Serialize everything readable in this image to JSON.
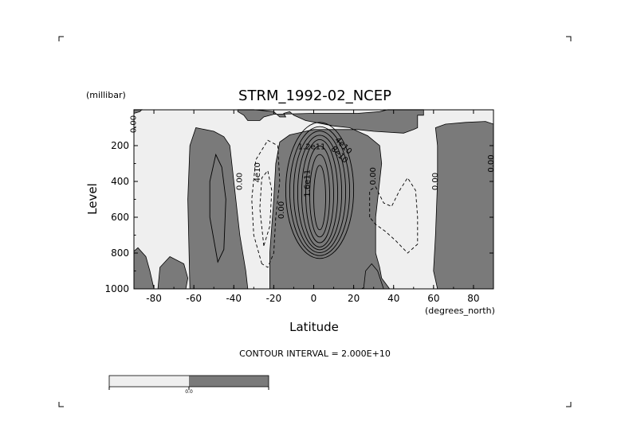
{
  "chart_data": {
    "type": "contour",
    "title": "STRM_1992-02_NCEP",
    "xlabel": "Latitude",
    "x_unit": "(degrees_north)",
    "ylabel": "Level",
    "y_unit": "(millibar)",
    "xlim": [
      -90,
      90
    ],
    "ylim": [
      1000,
      0
    ],
    "x_ticks": [
      -80,
      -60,
      -40,
      -20,
      0,
      20,
      40,
      60,
      80
    ],
    "y_ticks": [
      200,
      400,
      600,
      800,
      1000
    ],
    "contour_interval_label": "CONTOUR INTERVAL = 2.000E+10",
    "contour_labels": [
      "0.00",
      "0.00",
      "4e10",
      "0.00",
      "1.2e11",
      "8e10",
      "4e10",
      "1.6e11",
      "0.00",
      "0.00",
      "0.00"
    ],
    "colorbar": {
      "center_label": "0.0",
      "colors": [
        "#efefef",
        "#7a7a7a"
      ]
    },
    "shade_colors": {
      "negative": "#efefef",
      "positive": "#7a7a7a"
    }
  }
}
